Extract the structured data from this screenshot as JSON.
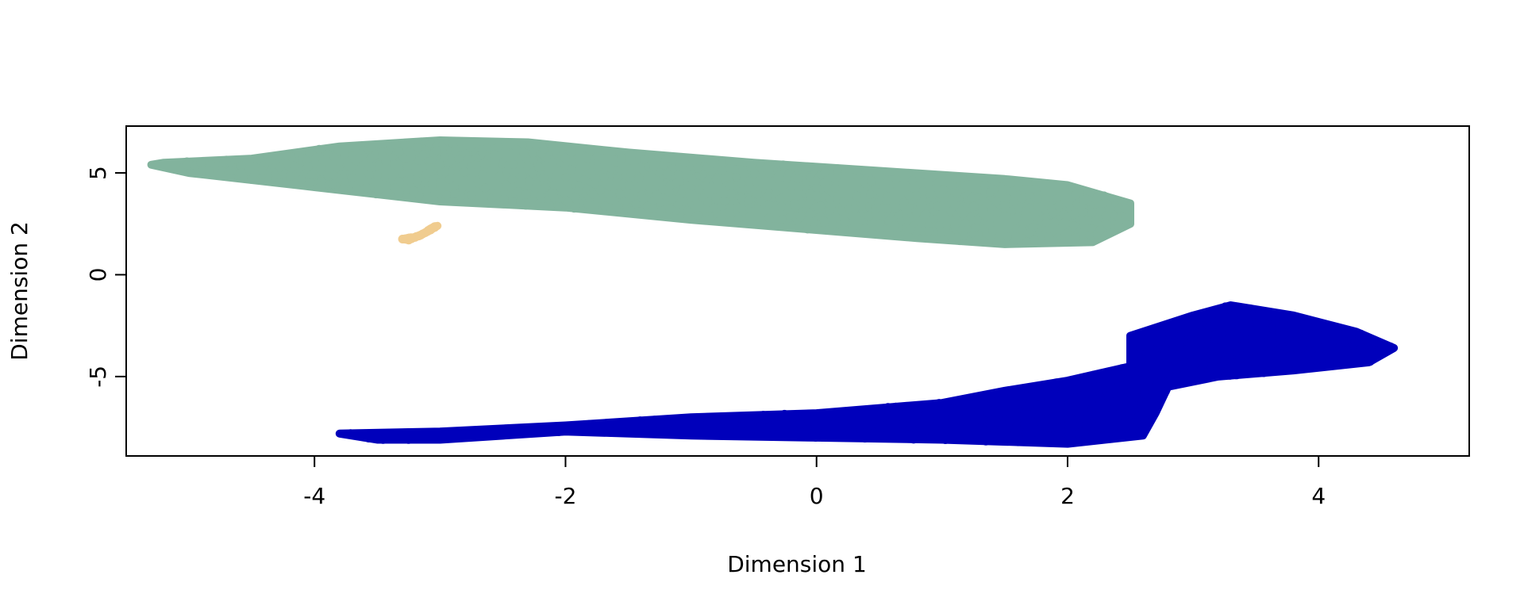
{
  "chart_data": {
    "type": "scatter",
    "title": "",
    "xlabel": "Dimension 1",
    "ylabel": "Dimension 2",
    "xlim": [
      -5.5,
      5.2
    ],
    "ylim": [
      -8.9,
      7.3
    ],
    "x_ticks": [
      -4,
      -2,
      0,
      2,
      4
    ],
    "y_ticks": [
      -5,
      0,
      5
    ],
    "x_tick_labels": [
      "-4",
      "-2",
      "0",
      "2",
      "4"
    ],
    "y_tick_labels": [
      "-5",
      "0",
      "5"
    ],
    "grid": false,
    "legend": "none",
    "series": [
      {
        "color": "#82b39d",
        "x_range": [
          -5.3,
          2.5
        ],
        "y_range": [
          1.4,
          6.7
        ],
        "cluster_outline": [
          [
            -5.2,
            5.5
          ],
          [
            -4.5,
            5.7
          ],
          [
            -3.8,
            6.3
          ],
          [
            -3.0,
            6.6
          ],
          [
            -2.3,
            6.5
          ],
          [
            -1.5,
            6.0
          ],
          [
            -0.5,
            5.5
          ],
          [
            0.5,
            5.1
          ],
          [
            1.5,
            4.7
          ],
          [
            2.0,
            4.4
          ],
          [
            2.5,
            3.5
          ],
          [
            2.5,
            2.5
          ],
          [
            2.2,
            1.6
          ],
          [
            1.5,
            1.5
          ],
          [
            0.8,
            1.8
          ],
          [
            0.0,
            2.2
          ],
          [
            -1.0,
            2.7
          ],
          [
            -2.0,
            3.3
          ],
          [
            -3.0,
            3.6
          ],
          [
            -4.0,
            4.3
          ],
          [
            -5.0,
            5.0
          ],
          [
            -5.3,
            5.4
          ]
        ]
      },
      {
        "color": "#f0cc8f",
        "x_range": [
          -3.3,
          -3.0
        ],
        "y_range": [
          1.7,
          2.4
        ],
        "cluster_outline": [
          [
            -3.3,
            1.75
          ],
          [
            -3.2,
            1.85
          ],
          [
            -3.1,
            2.1
          ],
          [
            -3.02,
            2.4
          ],
          [
            -3.05,
            2.35
          ],
          [
            -3.15,
            1.95
          ],
          [
            -3.25,
            1.7
          ]
        ]
      },
      {
        "color": "#0000bb",
        "x_range": [
          -3.8,
          4.6
        ],
        "y_range": [
          -8.3,
          -1.4
        ],
        "cluster_outline": [
          [
            -3.8,
            -7.8
          ],
          [
            -3.0,
            -7.7
          ],
          [
            -2.0,
            -7.4
          ],
          [
            -1.0,
            -7.0
          ],
          [
            0.0,
            -6.8
          ],
          [
            1.0,
            -6.3
          ],
          [
            1.5,
            -5.7
          ],
          [
            2.0,
            -5.2
          ],
          [
            2.5,
            -4.5
          ],
          [
            2.5,
            -3.0
          ],
          [
            3.0,
            -2.0
          ],
          [
            3.3,
            -1.5
          ],
          [
            3.8,
            -2.0
          ],
          [
            4.3,
            -2.8
          ],
          [
            4.6,
            -3.6
          ],
          [
            4.4,
            -4.3
          ],
          [
            3.8,
            -4.7
          ],
          [
            3.2,
            -5.0
          ],
          [
            2.8,
            -5.5
          ],
          [
            2.7,
            -6.8
          ],
          [
            2.6,
            -7.9
          ],
          [
            2.0,
            -8.3
          ],
          [
            1.0,
            -8.1
          ],
          [
            0.0,
            -8.0
          ],
          [
            -1.0,
            -7.9
          ],
          [
            -2.0,
            -7.7
          ],
          [
            -3.0,
            -8.1
          ],
          [
            -3.5,
            -8.1
          ]
        ]
      }
    ]
  }
}
